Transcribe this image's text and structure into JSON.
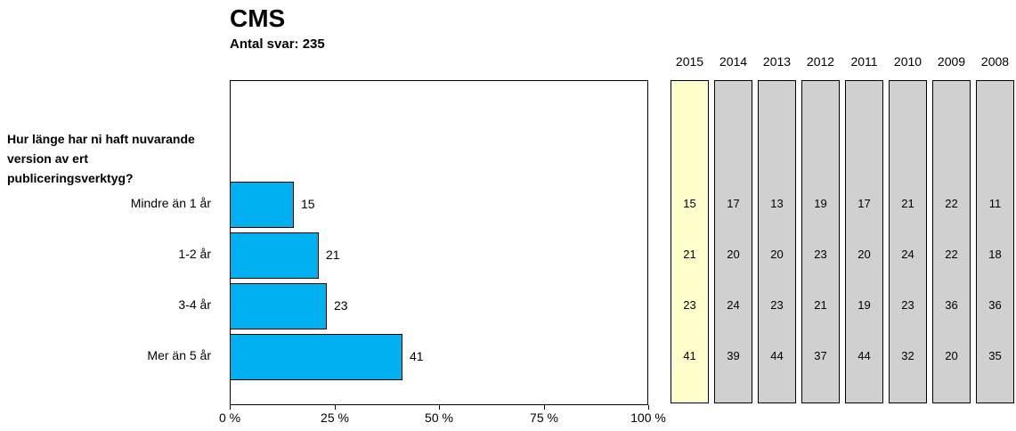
{
  "header": {
    "title": "CMS",
    "subtitle": "Antal svar: 235"
  },
  "question": {
    "text": "Hur länge har ni haft nuvarande\nversion av ert\npubliceringsverktyg?"
  },
  "chart_data": {
    "type": "bar",
    "orientation": "horizontal",
    "title": "CMS",
    "subtitle": "Antal svar: 235",
    "question": "Hur länge har ni haft nuvarande version av ert publiceringsverktyg?",
    "categories": [
      "Mindre än 1 år",
      "1-2 år",
      "3-4 år",
      "Mer än 5 år"
    ],
    "values": [
      15,
      21,
      23,
      41
    ],
    "value_unit": "%",
    "xlim": [
      0,
      100
    ],
    "x_tick_values": [
      0,
      25,
      50,
      75,
      100
    ],
    "x_tick_labels": [
      "0 %",
      "25 %",
      "50 %",
      "75 %",
      "100 %"
    ],
    "grid": false,
    "bar_color": "#00B0F0",
    "bar_border_color": "#000000",
    "history": {
      "years": [
        "2015",
        "2014",
        "2013",
        "2012",
        "2011",
        "2010",
        "2009",
        "2008"
      ],
      "highlight_year": "2015",
      "highlight_color": "#FFFFCC",
      "column_color": "#D0D0D0",
      "series": [
        {
          "year": "2015",
          "values": [
            15,
            21,
            23,
            41
          ]
        },
        {
          "year": "2014",
          "values": [
            17,
            20,
            24,
            39
          ]
        },
        {
          "year": "2013",
          "values": [
            13,
            20,
            23,
            44
          ]
        },
        {
          "year": "2012",
          "values": [
            19,
            23,
            21,
            37
          ]
        },
        {
          "year": "2011",
          "values": [
            17,
            20,
            19,
            44
          ]
        },
        {
          "year": "2010",
          "values": [
            21,
            24,
            23,
            32
          ]
        },
        {
          "year": "2009",
          "values": [
            22,
            22,
            36,
            20
          ]
        },
        {
          "year": "2008",
          "values": [
            11,
            18,
            36,
            35
          ]
        }
      ]
    }
  }
}
